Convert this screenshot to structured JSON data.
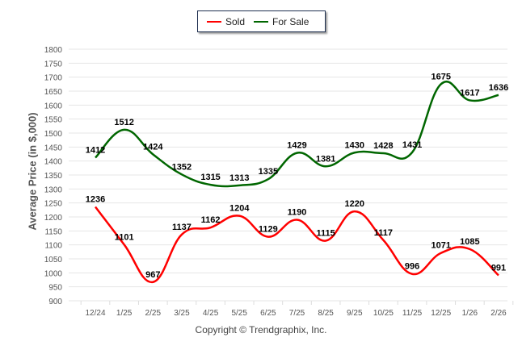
{
  "chart_data": {
    "type": "line",
    "title": "",
    "xlabel": "",
    "ylabel": "Average Price (in $,000)",
    "ylim": [
      900,
      1800
    ],
    "yticks": [
      900,
      950,
      1000,
      1050,
      1100,
      1150,
      1200,
      1250,
      1300,
      1350,
      1400,
      1450,
      1500,
      1550,
      1600,
      1650,
      1700,
      1750,
      1800
    ],
    "grid": true,
    "legend_position": "top-center",
    "categories": [
      "12/24",
      "1/25",
      "2/25",
      "3/25",
      "4/25",
      "5/25",
      "6/25",
      "7/25",
      "8/25",
      "9/25",
      "10/25",
      "11/25",
      "12/25",
      "1/26",
      "2/26"
    ],
    "series": [
      {
        "name": "Sold",
        "color": "#ff0000",
        "values": [
          1236,
          1101,
          967,
          1137,
          1162,
          1204,
          1129,
          1190,
          1115,
          1220,
          1117,
          996,
          1071,
          1085,
          991
        ]
      },
      {
        "name": "For Sale",
        "color": "#006600",
        "values": [
          1412,
          1512,
          1424,
          1352,
          1315,
          1313,
          1335,
          1429,
          1381,
          1430,
          1428,
          1431,
          1675,
          1617,
          1636
        ]
      }
    ]
  },
  "footer": {
    "copyright": "Copyright © Trendgraphix, Inc."
  }
}
